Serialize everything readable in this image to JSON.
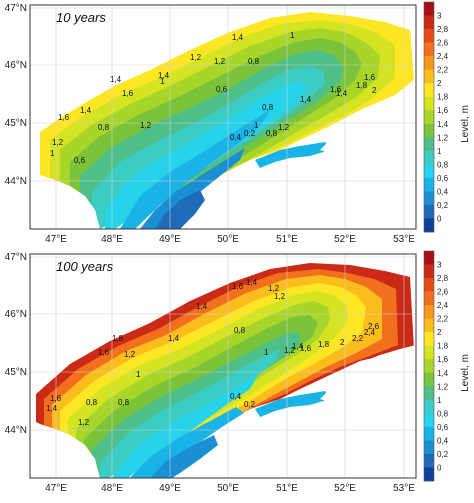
{
  "panels": [
    {
      "title": "10 years",
      "contour_labels": [
        "1,4",
        "1",
        "1,2",
        "1,4",
        "1,6",
        "1,2",
        "1,4",
        "1,6",
        "1,4",
        "1,2",
        "1",
        "0,8",
        "0,8",
        "0,6",
        "0,8",
        "0,6",
        "1",
        "1,2",
        "1,4",
        "1,6",
        "1,8",
        "2",
        "0,4",
        "0,2",
        "1,4",
        "1,6",
        "1,2",
        "1",
        "0,8"
      ]
    },
    {
      "title": "100 years",
      "contour_labels": [
        "1,6",
        "1,4",
        "1,2",
        "1,4",
        "1,2",
        "1,8",
        "1,6",
        "1,4",
        "1,2",
        "1",
        "0,8",
        "0,8",
        "1",
        "1,2",
        "1,4",
        "1,6",
        "1,8",
        "2",
        "2,2",
        "2,4",
        "2,6",
        "0,4",
        "0,2",
        "1,6",
        "1,4",
        "1,2",
        "0,8"
      ]
    }
  ],
  "lon_ticks": [
    "47°E",
    "48°E",
    "49°E",
    "50°E",
    "51°E",
    "52°E",
    "53°E"
  ],
  "lat_ticks": [
    "47°N",
    "46°N",
    "45°N",
    "44°N"
  ],
  "colorbar": {
    "title": "Level, m",
    "ticks": [
      "3",
      "2,8",
      "2,6",
      "2,4",
      "2,2",
      "2",
      "1,8",
      "1,6",
      "1,4",
      "1,2",
      "1",
      "0,8",
      "0,6",
      "0,4",
      "0,2",
      "0"
    ],
    "colors": [
      "#a50f15",
      "#cb2a16",
      "#e44b17",
      "#f2701d",
      "#f7951d",
      "#fbbd1e",
      "#fde725",
      "#d4e422",
      "#a8d52a",
      "#7bc43a",
      "#4fbf8a",
      "#3bcdc4",
      "#27d3ea",
      "#1ab3e6",
      "#1a8fd4",
      "#1f6bb8",
      "#0f3f9a"
    ]
  }
}
